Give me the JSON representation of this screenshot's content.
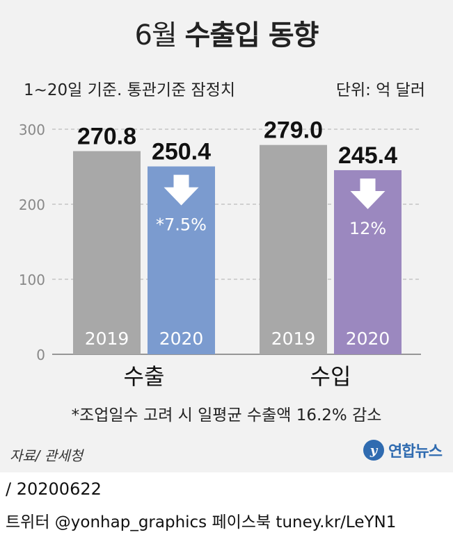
{
  "header": {
    "title_light": "6월",
    "title_bold": "수출입 동향",
    "subtitle": "1~20일 기준. 통관기준 잠정치",
    "unit": "단위: 억 달러"
  },
  "chart_data": {
    "type": "bar",
    "title": "6월 수출입 동향",
    "ylabel": "억 달러",
    "ylim": [
      0,
      300
    ],
    "yticks": [
      "0",
      "100",
      "200",
      "300"
    ],
    "groups": [
      {
        "name": "수출",
        "bars": [
          {
            "year": "2019",
            "value": 270.8,
            "label": "270.8",
            "color": "#a8a8a8"
          },
          {
            "year": "2020",
            "value": 250.4,
            "label": "250.4",
            "color": "#7b9bcf",
            "change": "*7.5%"
          }
        ]
      },
      {
        "name": "수입",
        "bars": [
          {
            "year": "2019",
            "value": 279.0,
            "label": "279.0",
            "color": "#a8a8a8"
          },
          {
            "year": "2020",
            "value": 245.4,
            "label": "245.4",
            "color": "#9b88bf",
            "change": "12%"
          }
        ]
      }
    ],
    "grid": true
  },
  "footnote": "*조업일수 고려 시 일평균 수출액 16.2% 감소",
  "source": "자료/ 관세청",
  "logo": "연합뉴스",
  "date": "/ 20200622",
  "social": "트위터 @yonhap_graphics  페이스북 tuney.kr/LeYN1"
}
